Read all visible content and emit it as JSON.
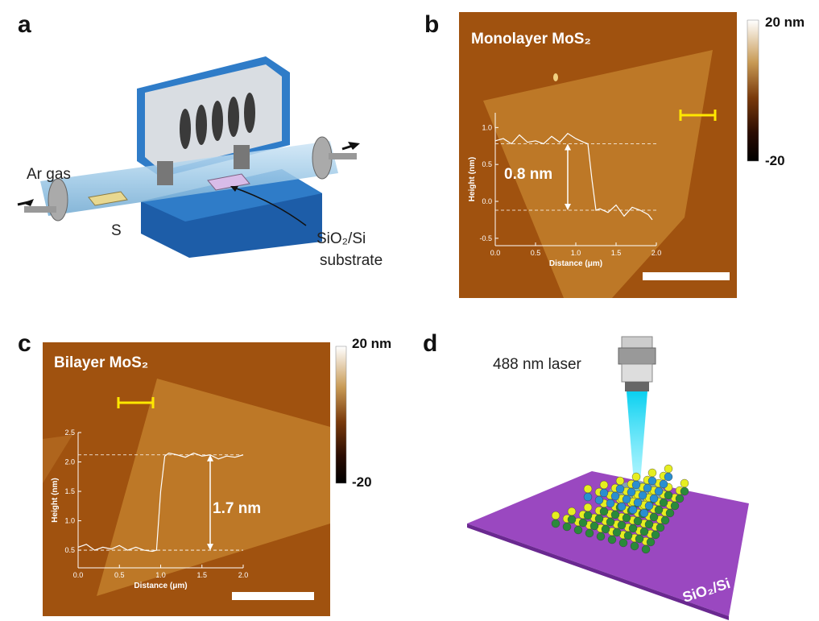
{
  "panel_a": {
    "label": "a",
    "gas": "Ar gas",
    "source": "S",
    "substrate": [
      "SiO₂/Si",
      "substrate"
    ]
  },
  "panel_b": {
    "label": "b",
    "title": "Monolayer MoS₂",
    "colorbar": {
      "max_label": "20 nm",
      "min_label": "-20"
    },
    "profile": {
      "x_label": "Distance (μm)",
      "y_label": "Height (nm)",
      "step_label": "0.8 nm",
      "xlim": [
        0,
        2
      ],
      "ylim": [
        -0.6,
        1.2
      ],
      "xticks": [
        {
          "value": 0,
          "label": "0.0"
        },
        0.5,
        {
          "value": 1,
          "label": "1.0"
        },
        1.5,
        {
          "value": 2,
          "label": "2.0"
        }
      ],
      "yticks": [
        -0.5,
        {
          "value": 0,
          "label": "0.0"
        },
        0.5,
        {
          "value": 1,
          "label": "1.0"
        }
      ],
      "x": [
        0,
        0.1,
        0.2,
        0.3,
        0.4,
        0.5,
        0.6,
        0.7,
        0.8,
        0.9,
        1.0,
        1.1,
        1.15,
        1.2,
        1.25,
        1.3,
        1.4,
        1.5,
        1.6,
        1.7,
        1.8,
        1.9,
        1.95
      ],
      "values": [
        0.82,
        0.85,
        0.78,
        0.9,
        0.8,
        0.82,
        0.78,
        0.88,
        0.8,
        0.92,
        0.85,
        0.8,
        0.78,
        0.3,
        -0.12,
        -0.1,
        -0.15,
        -0.05,
        -0.2,
        -0.08,
        -0.12,
        -0.18,
        -0.25
      ],
      "levels": [
        0.78,
        -0.12
      ]
    }
  },
  "panel_c": {
    "label": "c",
    "title": "Bilayer MoS₂",
    "colorbar": {
      "max_label": "20 nm",
      "min_label": "-20"
    },
    "profile": {
      "x_label": "Distance (μm)",
      "y_label": "Height (nm)",
      "step_label": "1.7 nm",
      "xlim": [
        0,
        2
      ],
      "ylim": [
        0.2,
        2.5
      ],
      "xticks": [
        {
          "value": 0,
          "label": "0.0"
        },
        0.5,
        {
          "value": 1,
          "label": "1.0"
        },
        1.5,
        {
          "value": 2,
          "label": "2.0"
        }
      ],
      "yticks": [
        0.5,
        {
          "value": 1,
          "label": "1.0"
        },
        1.5,
        {
          "value": 2,
          "label": "2.0"
        },
        2.5
      ],
      "x": [
        0,
        0.1,
        0.2,
        0.3,
        0.4,
        0.5,
        0.6,
        0.7,
        0.8,
        0.9,
        0.95,
        1.0,
        1.05,
        1.1,
        1.2,
        1.3,
        1.4,
        1.5,
        1.6,
        1.7,
        1.8,
        1.9,
        2.0
      ],
      "values": [
        0.55,
        0.6,
        0.5,
        0.55,
        0.52,
        0.58,
        0.5,
        0.55,
        0.5,
        0.48,
        0.5,
        1.5,
        2.1,
        2.15,
        2.12,
        2.08,
        2.15,
        2.1,
        2.12,
        2.05,
        2.1,
        2.08,
        2.12
      ],
      "levels": [
        2.12,
        0.5
      ]
    }
  },
  "panel_d": {
    "label": "d",
    "laser": "488 nm laser",
    "substrate": "SiO₂/Si"
  }
}
